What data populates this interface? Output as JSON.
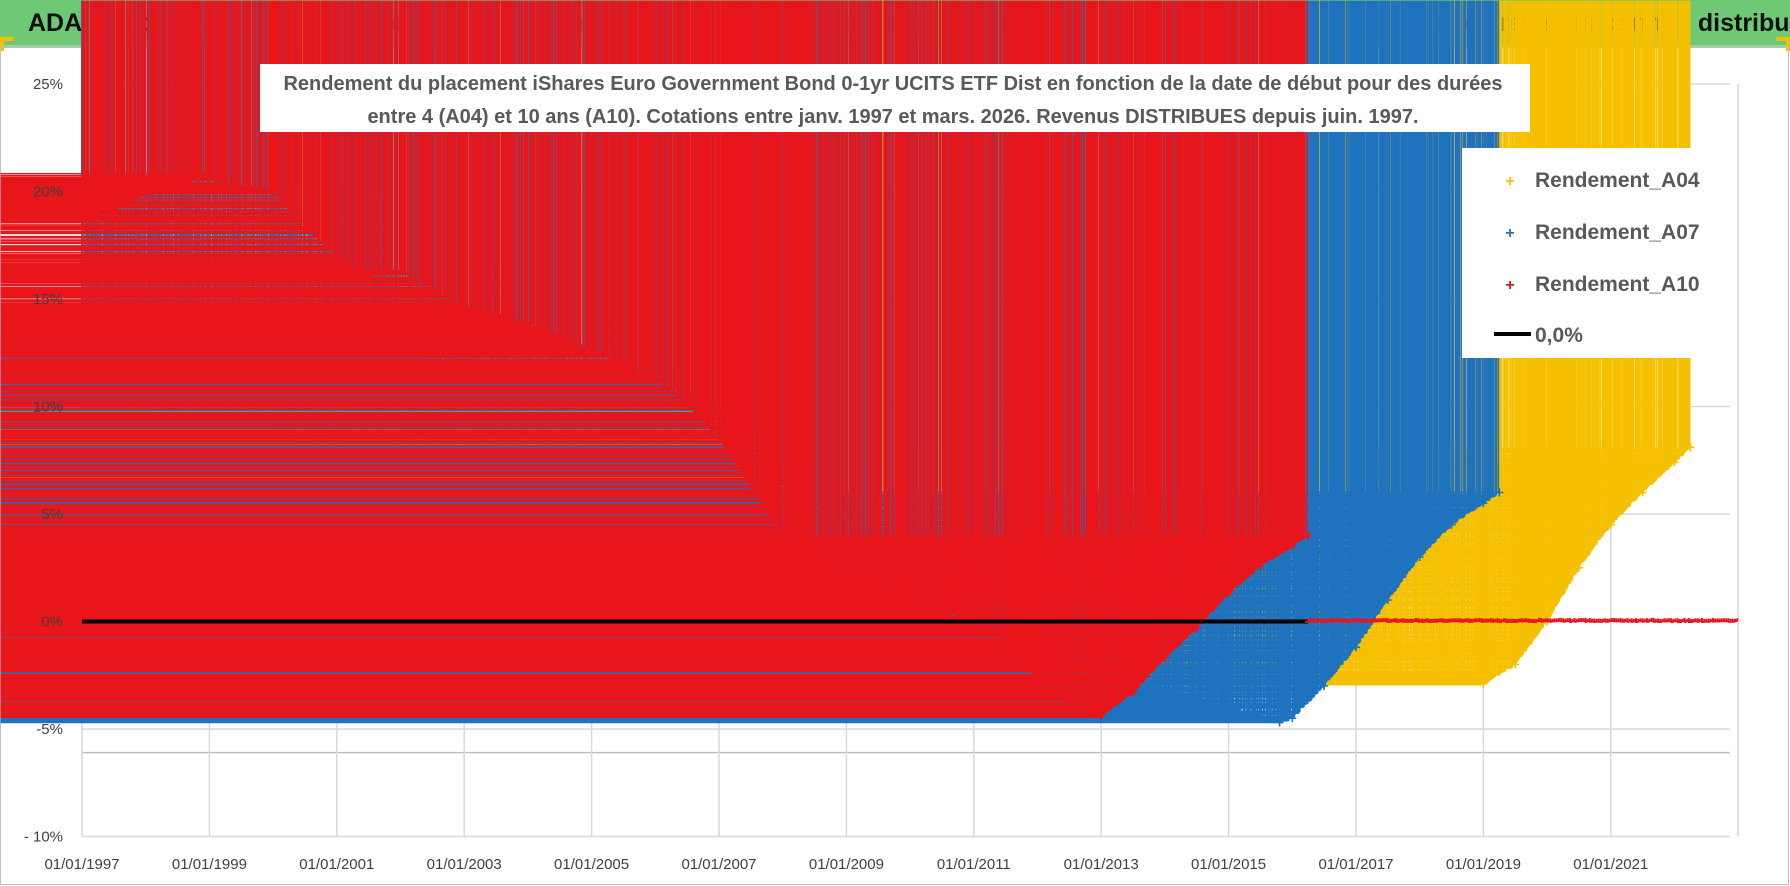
{
  "header": {
    "title": "ADAM Informe. Evolution historique des performances en euros pour des détentions de 4 ans (A04) à 10 ans (A10) avec les revenus connus distribués"
  },
  "chart_data": {
    "type": "scatter",
    "title_lines": [
      "Rendement du placement iShares Euro Government Bond 0-1yr UCITS ETF Dist en fonction de la date de début pour des durées",
      "entre 4 (A04) et 10 ans (A10).  Cotations entre janv. 1997 et mars. 2026.  Revenus DISTRIBUES depuis juin. 1997."
    ],
    "x_axis": {
      "start_year": 1997,
      "end_year": 2023,
      "tick_labels": [
        "01/01/1997",
        "01/01/1999",
        "01/01/2001",
        "01/01/2003",
        "01/01/2005",
        "01/01/2007",
        "01/01/2009",
        "01/01/2011",
        "01/01/2013",
        "01/01/2015",
        "01/01/2017",
        "01/01/2019",
        "01/01/2021"
      ],
      "tick_years": [
        1997,
        1999,
        2001,
        2003,
        2005,
        2007,
        2009,
        2011,
        2013,
        2015,
        2017,
        2019,
        2021
      ]
    },
    "y_axis": {
      "ylim": [
        -10,
        25
      ],
      "ticks": [
        25,
        20,
        15,
        10,
        5,
        0,
        -5,
        -10
      ],
      "tick_labels": [
        "25%",
        "20%",
        "15%",
        "10%",
        "5%",
        "0%",
        "-5%",
        "- 10%"
      ]
    },
    "legend": {
      "position": "top-right",
      "items": [
        {
          "label": "Rendement_A04",
          "color": "#f5c000",
          "marker": "plus"
        },
        {
          "label": "Rendement_A07",
          "color": "#1f72bd",
          "marker": "plus"
        },
        {
          "label": "Rendement_A10",
          "color": "#e8151b",
          "marker": "plus"
        },
        {
          "label": "0,0%",
          "color": "#000000",
          "marker": "line"
        }
      ]
    },
    "series": [
      {
        "name": "Rendement_A04",
        "color": "#f5c000",
        "x": [
          1997.0,
          1997.5,
          1998.0,
          1998.5,
          1999.0,
          1999.5,
          2000.0,
          2000.5,
          2001.0,
          2001.5,
          2002.0,
          2002.5,
          2003.0,
          2003.5,
          2004.0,
          2004.5,
          2005.0,
          2005.5,
          2006.0,
          2006.5,
          2007.0,
          2007.5,
          2008.0,
          2008.5,
          2009.0,
          2009.5,
          2010.0,
          2010.5,
          2011.0,
          2011.5,
          2012.0,
          2012.5,
          2013.0,
          2013.5,
          2014.0,
          2014.5,
          2015.0,
          2015.5,
          2016.0,
          2016.5,
          2017.0,
          2017.5,
          2018.0,
          2018.5,
          2019.0,
          2019.5,
          2020.0,
          2020.5,
          2021.0,
          2021.5,
          2022.0,
          2022.25
        ],
        "y": [
          8.7,
          9.5,
          9.9,
          9.3,
          9.3,
          9.0,
          8.9,
          8.0,
          7.1,
          6.3,
          5.6,
          5.3,
          4.7,
          5.5,
          6.6,
          7.5,
          8.0,
          8.1,
          8.0,
          7.6,
          7.2,
          6.7,
          5.9,
          4.9,
          4.2,
          3.8,
          3.5,
          3.3,
          3.1,
          2.6,
          1.3,
          0.6,
          0.0,
          -0.6,
          -1.2,
          -1.7,
          -2.0,
          -2.2,
          -2.4,
          -2.5,
          -2.5,
          -2.6,
          -2.6,
          -2.7,
          -2.9,
          -2.0,
          0.0,
          2.5,
          4.5,
          6.0,
          7.4,
          8.1
        ]
      },
      {
        "name": "Rendement_A07",
        "color": "#1f72bd",
        "x": [
          1997.0,
          1997.5,
          1998.0,
          1998.5,
          1999.0,
          1999.5,
          2000.0,
          2000.5,
          2001.0,
          2001.5,
          2002.0,
          2002.5,
          2003.0,
          2003.5,
          2004.0,
          2004.5,
          2005.0,
          2005.5,
          2006.0,
          2006.5,
          2007.0,
          2007.5,
          2008.0,
          2008.5,
          2009.0,
          2009.5,
          2010.0,
          2010.5,
          2011.0,
          2011.5,
          2012.0,
          2012.5,
          2013.0,
          2013.5,
          2014.0,
          2014.5,
          2015.0,
          2015.5,
          2015.8,
          2016.0,
          2016.5,
          2017.0,
          2017.5,
          2018.0,
          2018.5,
          2019.0,
          2019.25
        ],
        "y": [
          14.7,
          14.6,
          14.3,
          13.5,
          12.6,
          12.6,
          12.3,
          12.0,
          12.1,
          12.0,
          12.7,
          12.2,
          11.4,
          11.2,
          11.0,
          10.9,
          11.4,
          11.5,
          11.3,
          10.6,
          10.0,
          8.8,
          7.2,
          5.5,
          4.2,
          3.5,
          3.0,
          2.6,
          2.0,
          1.0,
          -0.8,
          -1.3,
          -2.1,
          -2.7,
          -3.2,
          -3.6,
          -3.9,
          -4.4,
          -4.7,
          -4.5,
          -3.0,
          -1.2,
          1.0,
          3.0,
          4.5,
          5.5,
          6.0
        ]
      },
      {
        "name": "Rendement_A10",
        "color": "#e8151b",
        "x": [
          1997.0,
          1997.5,
          1998.0,
          1998.5,
          1998.9,
          1999.2,
          1999.6,
          2000.0,
          2000.5,
          2001.0,
          2001.5,
          2002.0,
          2002.5,
          2003.0,
          2003.5,
          2004.0,
          2004.5,
          2005.0,
          2005.5,
          2006.0,
          2006.5,
          2007.0,
          2007.5,
          2008.0,
          2008.5,
          2009.0,
          2009.5,
          2010.0,
          2010.5,
          2011.0,
          2011.5,
          2012.0,
          2012.5,
          2013.0,
          2013.5,
          2014.0,
          2014.5,
          2015.0,
          2015.5,
          2016.0,
          2016.25
        ],
        "y": [
          18.7,
          19.1,
          19.9,
          20.1,
          20.8,
          20.2,
          20.2,
          20.0,
          18.3,
          17.0,
          16.1,
          16.3,
          15.5,
          14.7,
          14.3,
          13.8,
          13.3,
          12.6,
          12.0,
          11.3,
          10.1,
          8.5,
          6.3,
          4.0,
          2.7,
          2.0,
          1.5,
          1.0,
          0.5,
          0.0,
          -0.8,
          -2.8,
          -3.8,
          -4.4,
          -3.3,
          -1.7,
          -0.3,
          1.3,
          2.6,
          3.5,
          4.0
        ]
      },
      {
        "name": "0,0%",
        "color": "#000000",
        "x": [
          1997.0,
          2016.25
        ],
        "y": [
          0,
          0
        ]
      }
    ],
    "distributed_zero_span": {
      "from": 2016.25,
      "to": 2023.0,
      "color": "#e8151b"
    }
  }
}
